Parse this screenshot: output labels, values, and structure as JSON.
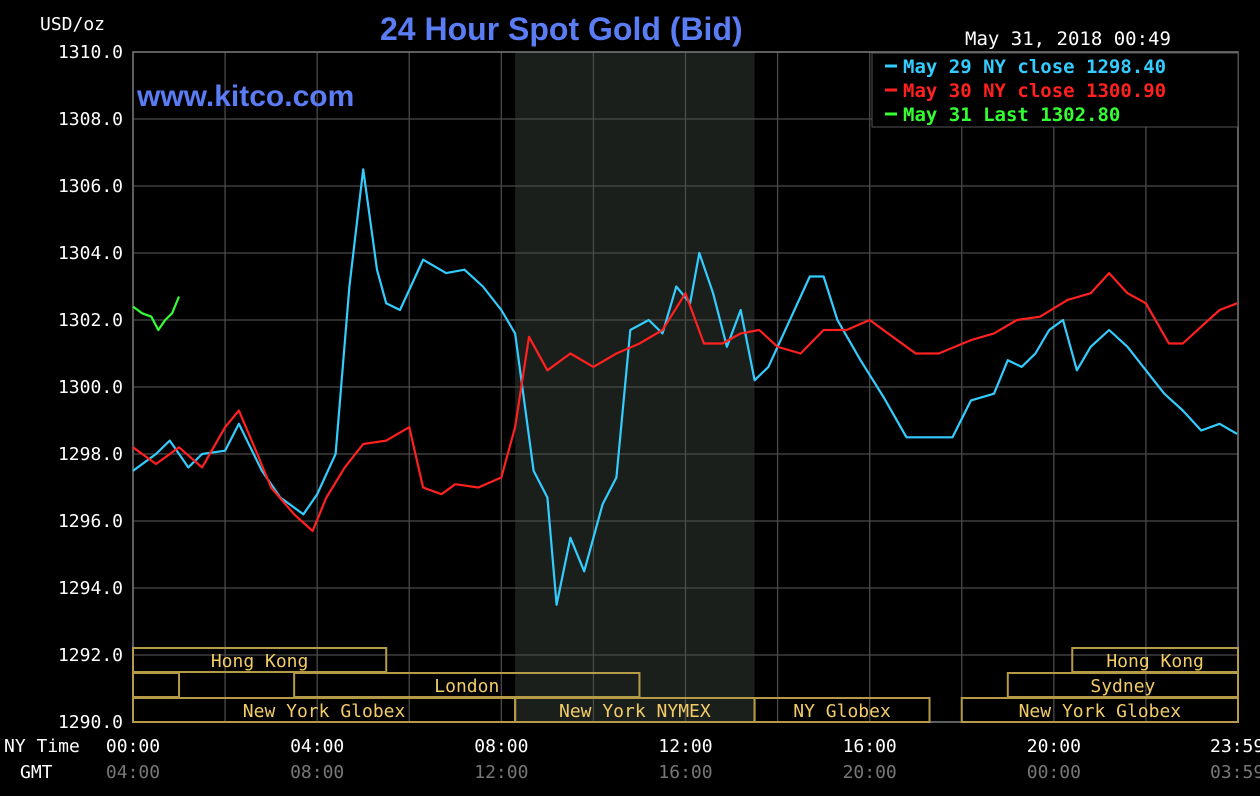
{
  "chart_data": {
    "type": "line",
    "title": "24 Hour Spot Gold (Bid)",
    "ylabel": "USD/oz",
    "watermark": "www.kitco.com",
    "timestamp": "May 31, 2018 00:49",
    "ylim": [
      1290,
      1310
    ],
    "y_ticks": [
      "1310.0",
      "1308.0",
      "1306.0",
      "1304.0",
      "1302.0",
      "1300.0",
      "1298.0",
      "1296.0",
      "1294.0",
      "1292.0",
      "1290.0"
    ],
    "x_row_labels": {
      "ny": "NY Time",
      "gmt": "GMT"
    },
    "x_ticks_ny": [
      "00:00",
      "04:00",
      "08:00",
      "12:00",
      "16:00",
      "20:00",
      "23:59"
    ],
    "x_ticks_gmt": [
      "04:00",
      "08:00",
      "12:00",
      "16:00",
      "20:00",
      "00:00",
      "03:59"
    ],
    "x_hours": [
      0,
      4,
      8,
      12,
      16,
      20,
      23.98
    ],
    "shaded_hours": [
      8.3,
      13.5
    ],
    "legend": [
      {
        "label": "May 29 NY close 1298.40",
        "color": "#33ccff"
      },
      {
        "label": "May 30 NY close 1300.90",
        "color": "#ff2020"
      },
      {
        "label": "May 31 Last 1302.80",
        "color": "#33ff33"
      }
    ],
    "sessions": [
      {
        "label": "Hong Kong",
        "start": 0,
        "end": 5.5,
        "row": 0
      },
      {
        "label": "Hong Kong",
        "start": 20.4,
        "end": 24,
        "row": 0
      },
      {
        "label": "",
        "start": 0,
        "end": 1,
        "row": 1
      },
      {
        "label": "London",
        "start": 3.5,
        "end": 11,
        "row": 1
      },
      {
        "label": "Sydney",
        "start": 19,
        "end": 24,
        "row": 1
      },
      {
        "label": "New York Globex",
        "start": 0,
        "end": 8.3,
        "row": 2
      },
      {
        "label": "New York NYMEX",
        "start": 8.3,
        "end": 13.5,
        "row": 2
      },
      {
        "label": "NY Globex",
        "start": 13.5,
        "end": 17.3,
        "row": 2
      },
      {
        "label": "New York Globex",
        "start": 18,
        "end": 24,
        "row": 2
      }
    ],
    "series": [
      {
        "name": "May 29",
        "color": "#33ccff",
        "x": [
          0,
          0.5,
          0.8,
          1.2,
          1.5,
          2,
          2.3,
          2.8,
          3.2,
          3.7,
          4,
          4.4,
          4.7,
          5,
          5.3,
          5.5,
          5.8,
          6.3,
          6.8,
          7.2,
          7.6,
          8,
          8.3,
          8.7,
          9,
          9.2,
          9.5,
          9.8,
          10.2,
          10.5,
          10.8,
          11.2,
          11.5,
          11.8,
          12.1,
          12.3,
          12.6,
          12.9,
          13.2,
          13.5,
          13.8,
          14.2,
          14.7,
          15,
          15.3,
          15.8,
          16.3,
          16.8,
          17.3,
          17.8,
          18.2,
          18.7,
          19,
          19.3,
          19.6,
          19.9,
          20.2,
          20.5,
          20.8,
          21.2,
          21.6,
          22,
          22.4,
          22.8,
          23.2,
          23.6,
          23.98
        ],
        "values": [
          1297.5,
          1298,
          1298.4,
          1297.6,
          1298,
          1298.1,
          1298.9,
          1297.5,
          1296.7,
          1296.2,
          1296.8,
          1298,
          1303,
          1306.5,
          1303.5,
          1302.5,
          1302.3,
          1303.8,
          1303.4,
          1303.5,
          1303,
          1302.3,
          1301.6,
          1297.5,
          1296.7,
          1293.5,
          1295.5,
          1294.5,
          1296.5,
          1297.3,
          1301.7,
          1302,
          1301.6,
          1303,
          1302.5,
          1304,
          1302.8,
          1301.2,
          1302.3,
          1300.2,
          1300.6,
          1301.8,
          1303.3,
          1303.3,
          1302,
          1300.8,
          1299.7,
          1298.5,
          1298.5,
          1298.5,
          1299.6,
          1299.8,
          1300.8,
          1300.6,
          1301,
          1301.7,
          1302,
          1300.5,
          1301.2,
          1301.7,
          1301.2,
          1300.5,
          1299.8,
          1299.3,
          1298.7,
          1298.9,
          1298.6
        ]
      },
      {
        "name": "May 30",
        "color": "#ff2020",
        "x": [
          0,
          0.5,
          1,
          1.5,
          2,
          2.3,
          2.7,
          3,
          3.5,
          3.9,
          4.2,
          4.6,
          5,
          5.5,
          6,
          6.3,
          6.7,
          7,
          7.5,
          8,
          8.3,
          8.6,
          9,
          9.5,
          10,
          10.5,
          11,
          11.5,
          12,
          12.4,
          12.8,
          13.2,
          13.6,
          14,
          14.5,
          15,
          15.5,
          16,
          16.5,
          17,
          17.5,
          18.2,
          18.7,
          19.2,
          19.7,
          20.3,
          20.8,
          21.2,
          21.6,
          22,
          22.5,
          22.8,
          23.2,
          23.6,
          23.98
        ],
        "values": [
          1298.2,
          1297.7,
          1298.2,
          1297.6,
          1298.8,
          1299.3,
          1298,
          1297,
          1296.2,
          1295.7,
          1296.7,
          1297.6,
          1298.3,
          1298.4,
          1298.8,
          1297,
          1296.8,
          1297.1,
          1297,
          1297.3,
          1298.8,
          1301.5,
          1300.5,
          1301,
          1300.6,
          1301,
          1301.3,
          1301.7,
          1302.8,
          1301.3,
          1301.3,
          1301.6,
          1301.7,
          1301.2,
          1301,
          1301.7,
          1301.7,
          1302,
          1301.5,
          1301,
          1301,
          1301.4,
          1301.6,
          1302,
          1302.1,
          1302.6,
          1302.8,
          1303.4,
          1302.8,
          1302.5,
          1301.3,
          1301.3,
          1301.8,
          1302.3,
          1302.5
        ]
      },
      {
        "name": "May 31",
        "color": "#33ff33",
        "x": [
          0,
          0.2,
          0.4,
          0.55,
          0.7,
          0.85,
          1
        ],
        "values": [
          1302.4,
          1302.2,
          1302.1,
          1301.7,
          1302,
          1302.2,
          1302.7
        ]
      }
    ]
  }
}
